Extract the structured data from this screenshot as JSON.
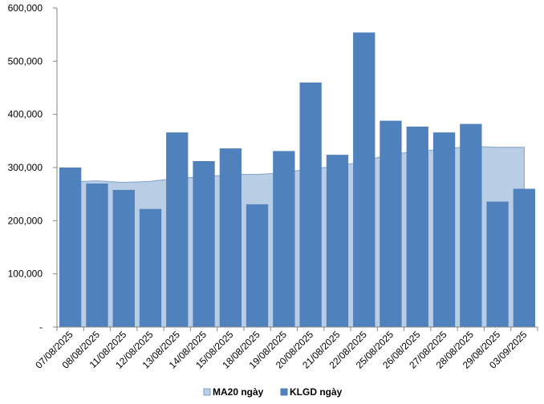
{
  "chart_data": {
    "type": "bar",
    "categories": [
      "07/08/2025",
      "08/08/2025",
      "11/08/2025",
      "12/08/2025",
      "13/08/2025",
      "14/08/2025",
      "15/08/2025",
      "18/08/2025",
      "19/08/2025",
      "20/08/2025",
      "21/08/2025",
      "22/08/2025",
      "25/08/2025",
      "26/08/2025",
      "27/08/2025",
      "28/08/2025",
      "29/08/2025",
      "03/09/2025"
    ],
    "series": [
      {
        "name": "KLGD ngày",
        "type": "bar",
        "color": "#4f81bd",
        "values": [
          300000,
          270000,
          258000,
          222000,
          366000,
          312000,
          336000,
          231000,
          331000,
          460000,
          324000,
          554000,
          388000,
          377000,
          366000,
          382000,
          236000,
          260000
        ]
      },
      {
        "name": "MA20 ngày",
        "type": "area",
        "color": "#b9cde5",
        "line_color": "#7fa1cd",
        "values": [
          273000,
          275000,
          272000,
          274000,
          280000,
          282000,
          287000,
          287000,
          290000,
          298000,
          302000,
          312000,
          325000,
          330000,
          335000,
          340000,
          338000,
          338000
        ]
      }
    ],
    "ylim": [
      0,
      600000
    ],
    "yticks": [
      0,
      100000,
      200000,
      300000,
      400000,
      500000,
      600000
    ],
    "ytick_labels": [
      "-",
      "100,000",
      "200,000",
      "300,000",
      "400,000",
      "500,000",
      "600,000"
    ],
    "xlabel": "",
    "ylabel": "",
    "grid": false,
    "legend_position": "bottom-center"
  },
  "legend": {
    "items": [
      {
        "label": "MA20 ngày",
        "color": "#b9cde5",
        "border": "#7fa1cd"
      },
      {
        "label": "KLGD ngày",
        "color": "#4f81bd",
        "border": "#4f81bd"
      }
    ]
  }
}
